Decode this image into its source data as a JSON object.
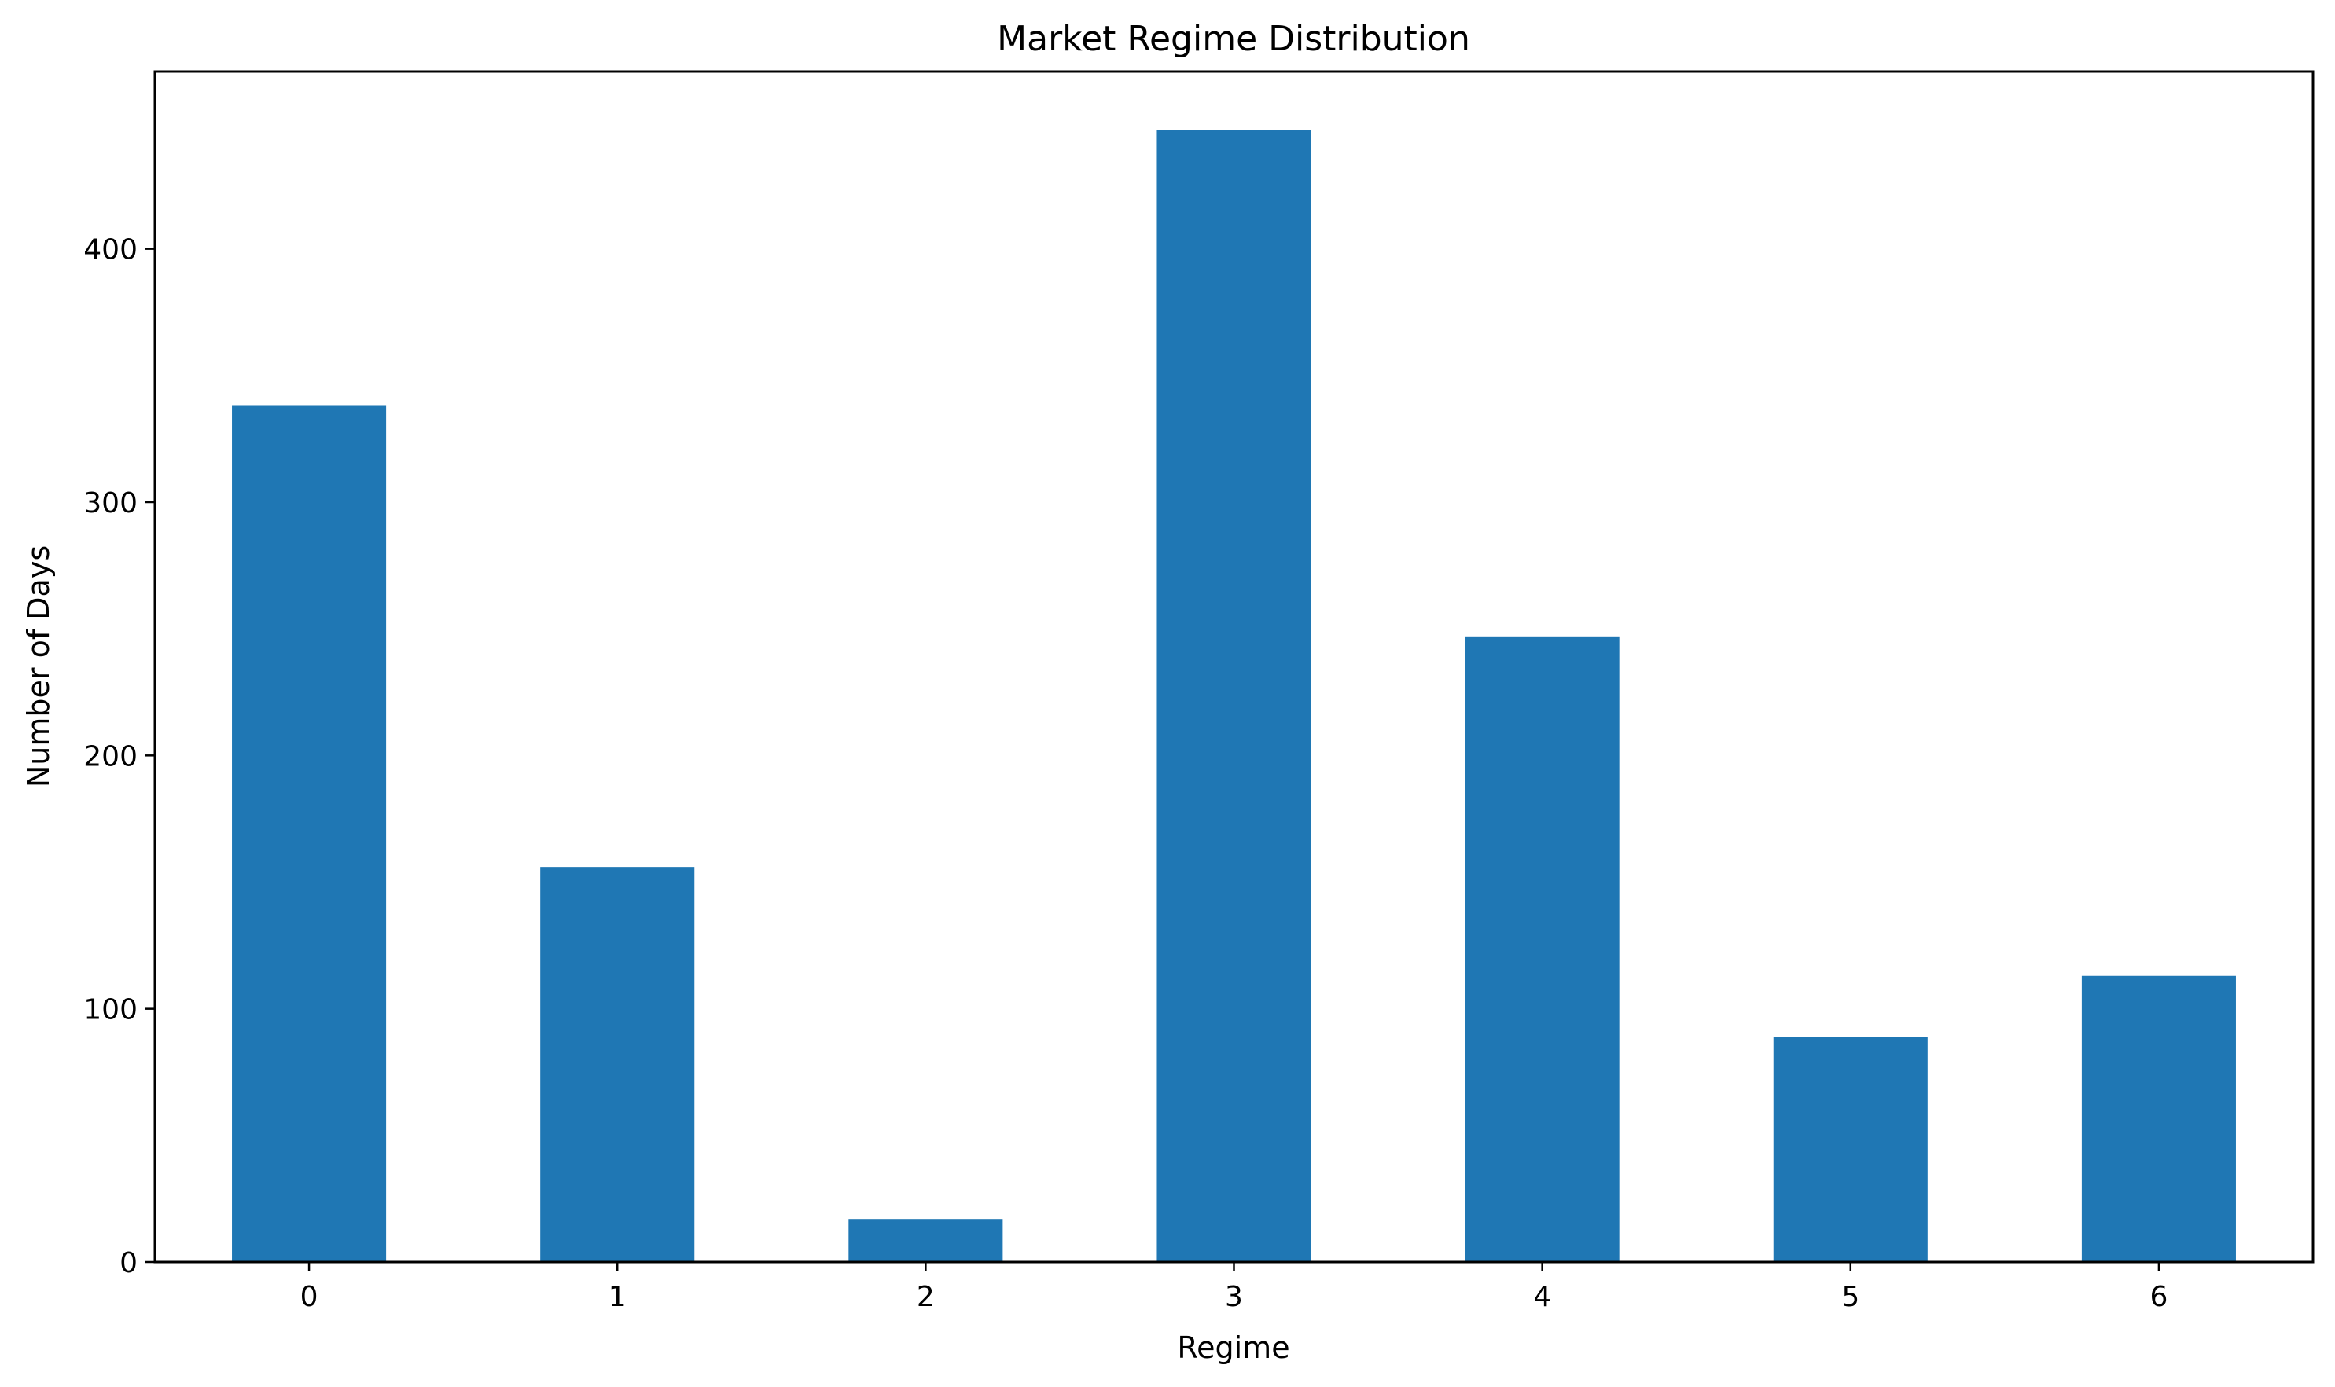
{
  "chart_data": {
    "type": "bar",
    "title": "Market Regime Distribution",
    "xlabel": "Regime",
    "ylabel": "Number of Days",
    "categories": [
      "0",
      "1",
      "2",
      "3",
      "4",
      "5",
      "6"
    ],
    "values": [
      338,
      156,
      17,
      447,
      247,
      89,
      113
    ],
    "ylim": [
      0,
      470
    ],
    "yticks": [
      "0",
      "100",
      "200",
      "300",
      "400"
    ],
    "bar_color": "#1f77b4",
    "grid": false,
    "legend": "none"
  }
}
